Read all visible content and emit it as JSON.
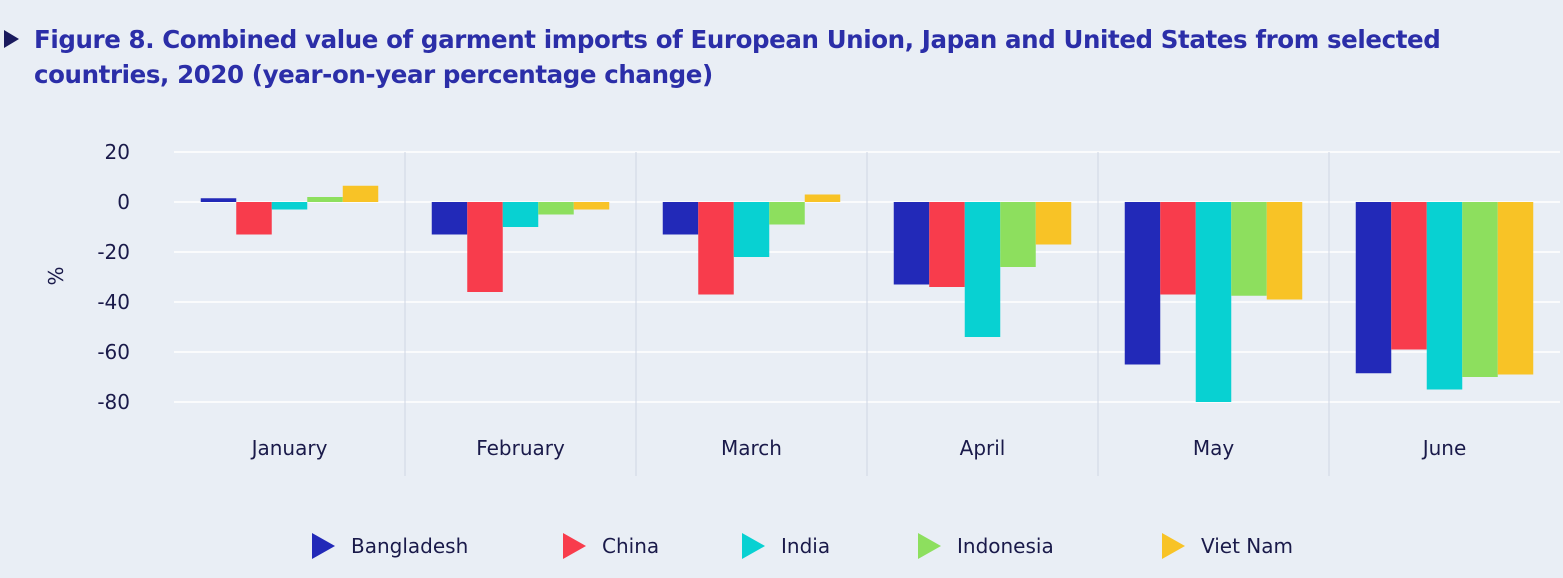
{
  "title": "Figure 8. Combined value of garment imports of European Union, Japan and United States from selected countries, 2020 (year-on-year percentage change)",
  "chart_data": {
    "type": "bar",
    "title": "Figure 8. Combined value of garment imports of European Union, Japan and United States from selected countries, 2020 (year-on-year percentage change)",
    "xlabel": "",
    "ylabel": "%",
    "ylim": [
      -90,
      20
    ],
    "yticks": [
      20,
      0,
      -20,
      -40,
      -60,
      -80
    ],
    "grid": true,
    "legend_position": "bottom",
    "categories": [
      "January",
      "February",
      "March",
      "April",
      "May",
      "June"
    ],
    "series": [
      {
        "name": "Bangladesh",
        "color": "#2229b8",
        "values": [
          1.5,
          -13,
          -13,
          -33,
          -65,
          -68.5
        ]
      },
      {
        "name": "China",
        "color": "#f83c4c",
        "values": [
          -13,
          -36,
          -37,
          -34,
          -37,
          -59
        ]
      },
      {
        "name": "India",
        "color": "#08d1d2",
        "values": [
          -3,
          -10,
          -22,
          -54,
          -80,
          -75
        ]
      },
      {
        "name": "Indonesia",
        "color": "#8ddf5e",
        "values": [
          2,
          -5,
          -9,
          -26,
          -37.5,
          -70
        ]
      },
      {
        "name": "Viet Nam",
        "color": "#f8c326",
        "values": [
          6.5,
          -3,
          3,
          -17,
          -39,
          -69
        ]
      }
    ]
  }
}
